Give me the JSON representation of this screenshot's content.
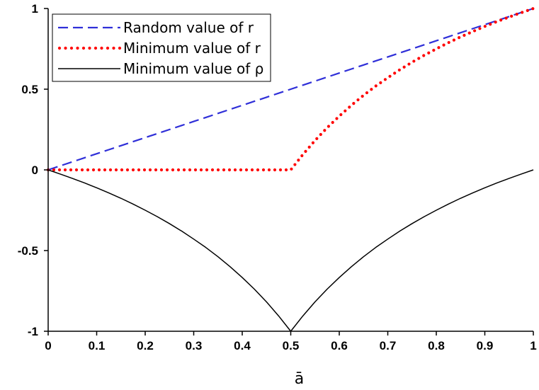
{
  "chart_data": {
    "type": "line",
    "title": "",
    "xlabel": "ā",
    "ylabel": "",
    "xlim": [
      0,
      1
    ],
    "ylim": [
      -1,
      1
    ],
    "x_ticks": [
      "0",
      "0.1",
      "0.2",
      "0.3",
      "0.4",
      "0.5",
      "0.6",
      "0.7",
      "0.8",
      "0.9",
      "1"
    ],
    "y_ticks": [
      "1",
      "0.5",
      "0",
      "-0.5",
      "-1"
    ],
    "grid": false,
    "legend_position": "top-left",
    "x": [
      0,
      0.025,
      0.05,
      0.075,
      0.1,
      0.125,
      0.15,
      0.175,
      0.2,
      0.225,
      0.25,
      0.275,
      0.3,
      0.325,
      0.35,
      0.375,
      0.4,
      0.425,
      0.45,
      0.475,
      0.5,
      0.525,
      0.55,
      0.575,
      0.6,
      0.625,
      0.65,
      0.675,
      0.7,
      0.725,
      0.75,
      0.775,
      0.8,
      0.825,
      0.85,
      0.875,
      0.9,
      0.925,
      0.95,
      0.975,
      1
    ],
    "series": [
      {
        "name": "Random value of r",
        "color": "#2f2fd8",
        "style": "dashed",
        "values": [
          0,
          0.025,
          0.05,
          0.075,
          0.1,
          0.125,
          0.15,
          0.175,
          0.2,
          0.225,
          0.25,
          0.275,
          0.3,
          0.325,
          0.35,
          0.375,
          0.4,
          0.425,
          0.45,
          0.475,
          0.5,
          0.525,
          0.55,
          0.575,
          0.6,
          0.625,
          0.65,
          0.675,
          0.7,
          0.725,
          0.75,
          0.775,
          0.8,
          0.825,
          0.85,
          0.875,
          0.9,
          0.925,
          0.95,
          0.975,
          1
        ]
      },
      {
        "name": "Minimum value of r",
        "color": "#ff0000",
        "style": "dotted",
        "values": [
          0,
          0,
          0,
          0,
          0,
          0,
          0,
          0,
          0,
          0,
          0,
          0,
          0,
          0,
          0,
          0,
          0,
          0,
          0,
          0,
          0,
          0.095,
          0.182,
          0.261,
          0.333,
          0.4,
          0.462,
          0.519,
          0.571,
          0.621,
          0.667,
          0.71,
          0.75,
          0.788,
          0.824,
          0.857,
          0.889,
          0.919,
          0.947,
          0.974,
          1
        ]
      },
      {
        "name": "Minimum value of ρ",
        "color": "#000000",
        "style": "solid",
        "values": [
          0,
          -0.026,
          -0.053,
          -0.081,
          -0.111,
          -0.143,
          -0.176,
          -0.212,
          -0.25,
          -0.29,
          -0.333,
          -0.379,
          -0.429,
          -0.481,
          -0.538,
          -0.6,
          -0.667,
          -0.739,
          -0.818,
          -0.905,
          -1,
          -0.905,
          -0.818,
          -0.739,
          -0.667,
          -0.6,
          -0.538,
          -0.481,
          -0.429,
          -0.379,
          -0.333,
          -0.29,
          -0.25,
          -0.212,
          -0.176,
          -0.143,
          -0.111,
          -0.081,
          -0.053,
          -0.026,
          0
        ]
      }
    ]
  }
}
